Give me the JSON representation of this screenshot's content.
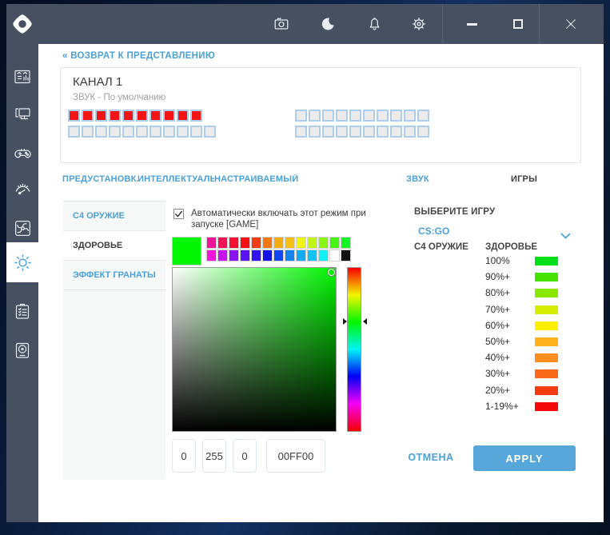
{
  "titlebar": {
    "icons": [
      "camera",
      "night-mode",
      "notifications",
      "settings"
    ],
    "window_controls": [
      "minimize",
      "maximize",
      "close"
    ]
  },
  "sidebar": {
    "items": [
      {
        "name": "dashboard",
        "active": false
      },
      {
        "name": "pc-specs",
        "active": false
      },
      {
        "name": "games",
        "active": false
      },
      {
        "name": "performance-gauge",
        "active": false
      },
      {
        "name": "cooling-fan",
        "active": false
      },
      {
        "name": "lighting",
        "active": true
      },
      {
        "name": "checklist",
        "active": false
      },
      {
        "name": "audio-device",
        "active": false
      }
    ]
  },
  "main": {
    "back_link": "« ВОЗВРАТ К ПРЕДСТАВЛЕНИЮ",
    "channel": {
      "title": "КАНАЛ 1",
      "subtitle": "ЗВУК - По умолчанию",
      "led_on_color": "#f51414",
      "led_off_color": "#ebebeb",
      "led_border": "#aecdeb",
      "led_groups": [
        {
          "rows": [
            {
              "count": 10,
              "state": "on"
            },
            {
              "count": 11,
              "state": "off"
            }
          ]
        },
        {
          "rows": [
            {
              "count": 10,
              "state": "off"
            },
            {
              "count": 10,
              "state": "off"
            }
          ]
        }
      ]
    },
    "tabs": [
      {
        "label": "ПРЕДУСТАНОВКА",
        "active": false
      },
      {
        "label": "ИНТЕЛЛЕКТУАЛЬНЫЙ",
        "active": false
      },
      {
        "label": "НАСТРАИВАЕМЫЙ",
        "active": false
      },
      {
        "label": "ЗВУК",
        "active": false
      },
      {
        "label": "ИГРЫ",
        "active": true
      }
    ],
    "games_panel": {
      "subtabs": [
        {
          "label": "C4 ОРУЖИЕ",
          "active": false
        },
        {
          "label": "ЗДОРОВЬЕ",
          "active": true
        },
        {
          "label": "ЭФФЕКТ ГРАНАТЫ",
          "active": false
        }
      ],
      "auto_enable": {
        "checked": true,
        "label": "Автоматически включать этот режим при запуске [GAME]"
      },
      "picker": {
        "current_color": "#00f500",
        "swatches_row1": [
          "#f5129b",
          "#f51256",
          "#f51233",
          "#f51212",
          "#f53d12",
          "#f57a12",
          "#f5ad12",
          "#f5c012",
          "#f2f512",
          "#c0f512",
          "#8af512",
          "#45f512",
          "#12f525"
        ],
        "swatches_row2": [
          "#f512dd",
          "#c412f5",
          "#8c12f5",
          "#5b12f5",
          "#2f12f5",
          "#1212f5",
          "#1247f5",
          "#1283f5",
          "#12aaf5",
          "#12c4f5",
          "#12f0f5",
          "#ffffff",
          "#111111"
        ],
        "hue_position_pct": 33,
        "r": "0",
        "g": "255",
        "b": "0",
        "hex": "00FF00"
      },
      "game_select": {
        "label": "ВЫБЕРИТЕ ИГРУ",
        "value": "CS:GO"
      },
      "columns": [
        "C4 ОРУЖИЕ",
        "ЗДОРОВЬЕ"
      ],
      "health_levels": [
        {
          "label": "100%",
          "color": "#00e01a"
        },
        {
          "label": "90%+",
          "color": "#47e300"
        },
        {
          "label": "80%+",
          "color": "#8ae800"
        },
        {
          "label": "70%+",
          "color": "#d6ec00"
        },
        {
          "label": "60%+",
          "color": "#ffee00"
        },
        {
          "label": "50%+",
          "color": "#ffb21c"
        },
        {
          "label": "40%+",
          "color": "#ff8d1f"
        },
        {
          "label": "30%+",
          "color": "#fb6a19"
        },
        {
          "label": "20%+",
          "color": "#f53b10"
        },
        {
          "label": "1-19%+",
          "color": "#f50a0a"
        }
      ],
      "cancel_label": "ОТМЕНА",
      "apply_label": "APPLY"
    }
  },
  "accent": {
    "blue": "#4aa0d8",
    "titlebar": "#475060"
  }
}
